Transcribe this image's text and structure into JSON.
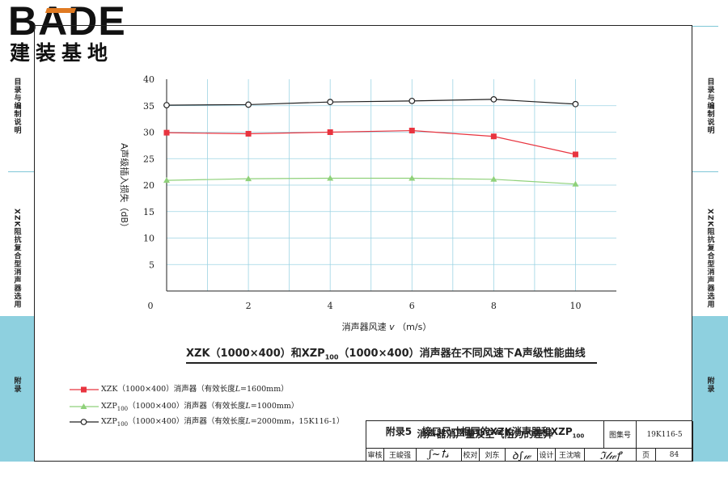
{
  "logo": {
    "main": "BADE",
    "sub": "建装基地"
  },
  "side_tabs": {
    "left": [
      "目录与编制说明",
      "XZK阻抗复合型消声器选用",
      "附录"
    ],
    "right": [
      "目录与编制说明",
      "XZK阻抗复合型消声器选用",
      "附录"
    ]
  },
  "caption": {
    "prefix": "XZK（1000×400）和XZP",
    "sub": "100",
    "suffix": "（1000×400）消声器在不同风速下A声级性能曲线"
  },
  "legend": [
    {
      "prefix": "XZK（1000×400）消声器（有效长度",
      "var": "L",
      "suffix": "=1600mm）",
      "color": "#e8343f",
      "marker": "square"
    },
    {
      "prefix": "XZP",
      "sub": "100",
      "mid": "（1000×400）消声器（有效长度",
      "var": "L",
      "suffix": "=1000mm）",
      "color": "#8fd17a",
      "marker": "triangle"
    },
    {
      "prefix": "XZP",
      "sub": "100",
      "mid": "（1000×400）消声器（有效长度",
      "var": "L",
      "suffix": "=2000mm，15K116-1）",
      "color": "#222222",
      "marker": "circle"
    }
  ],
  "chart_data": {
    "type": "line",
    "xlabel_text": "消声器风速",
    "xlabel_var": "v",
    "xlabel_unit": "（m/s）",
    "ylabel": "A声级插入损失（dB）",
    "xlim": [
      0,
      11
    ],
    "ylim": [
      0,
      40
    ],
    "x_ticks": [
      0,
      2,
      4,
      6,
      8,
      10
    ],
    "y_ticks": [
      5,
      10,
      15,
      20,
      25,
      30,
      35,
      40
    ],
    "grid": true,
    "series": [
      {
        "name": "XZK（1000×400）",
        "color": "#e8343f",
        "marker": "square",
        "x": [
          0,
          2,
          4,
          6,
          8,
          10
        ],
        "y": [
          29.9,
          29.7,
          30.0,
          30.3,
          29.2,
          25.8
        ]
      },
      {
        "name": "XZP100（1000×400）L=1000mm",
        "color": "#8fd17a",
        "marker": "triangle",
        "x": [
          0,
          2,
          4,
          6,
          8,
          10
        ],
        "y": [
          20.9,
          21.2,
          21.3,
          21.3,
          21.1,
          20.2
        ]
      },
      {
        "name": "XZP100（1000×400）L=2000mm",
        "color": "#222222",
        "marker": "circle",
        "x": [
          0,
          2,
          4,
          6,
          8,
          10
        ],
        "y": [
          35.1,
          35.2,
          35.7,
          35.9,
          36.2,
          35.3
        ]
      }
    ]
  },
  "title_block": {
    "appendix": "附录5",
    "title_line1": "接口尺寸相同的XZK消声器和XZP",
    "title_sub": "100",
    "title_line2": "消声器消声量及空气阻力的差异",
    "atlas_label": "图集号",
    "atlas_no": "19K116-5",
    "review_label": "审核",
    "reviewer": "王峻强",
    "check_label": "校对",
    "checker": "刘东",
    "design_label": "设计",
    "designer": "王沈喻",
    "page_label": "页",
    "page_no": "84"
  }
}
